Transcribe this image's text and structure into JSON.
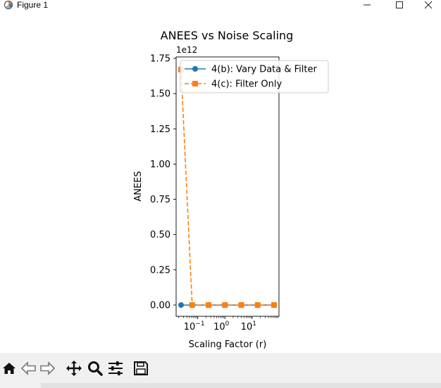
{
  "window": {
    "title": "Figure 1",
    "minimize_icon": "minimize-icon",
    "maximize_icon": "maximize-icon",
    "close_icon": "close-icon"
  },
  "toolbar": {
    "buttons": [
      {
        "name": "home-icon",
        "label": "Home"
      },
      {
        "name": "back-arrow-icon",
        "label": "Back"
      },
      {
        "name": "forward-arrow-icon",
        "label": "Forward"
      },
      {
        "name": "pan-icon",
        "label": "Pan"
      },
      {
        "name": "zoom-icon",
        "label": "Zoom"
      },
      {
        "name": "configure-subplots-icon",
        "label": "Configure subplots"
      },
      {
        "name": "save-icon",
        "label": "Save"
      }
    ]
  },
  "chart_data": {
    "type": "line",
    "title": "ANEES vs Noise Scaling",
    "xlabel": "Scaling Factor (r)",
    "ylabel": "ANEES",
    "x_scale": "log",
    "y_offset_label": "1e12",
    "yticks": [
      "0.00",
      "0.25",
      "0.50",
      "0.75",
      "1.00",
      "1.25",
      "1.50",
      "1.75"
    ],
    "xticks": [
      {
        "base": "10",
        "exp": "−1"
      },
      {
        "base": "10",
        "exp": "0"
      },
      {
        "base": "10",
        "exp": "1"
      }
    ],
    "ylim": [
      -0.08,
      1.76
    ],
    "legend_position": "upper right",
    "grid": false,
    "series": [
      {
        "name": "4(b): Vary Data & Filter",
        "color": "#1f77b4",
        "marker": "circle",
        "linestyle": "solid",
        "x": [
          0.0244,
          0.0625,
          0.25,
          1,
          4,
          16,
          64
        ],
        "y": [
          0,
          0,
          0,
          0,
          0,
          0,
          0
        ]
      },
      {
        "name": "4(c): Filter Only",
        "color": "#ff7f0e",
        "marker": "square",
        "linestyle": "dashed",
        "x": [
          0.0244,
          0.0625,
          0.25,
          1,
          4,
          16,
          64
        ],
        "y": [
          1.67,
          0,
          0,
          0,
          0,
          0,
          0
        ]
      }
    ]
  }
}
